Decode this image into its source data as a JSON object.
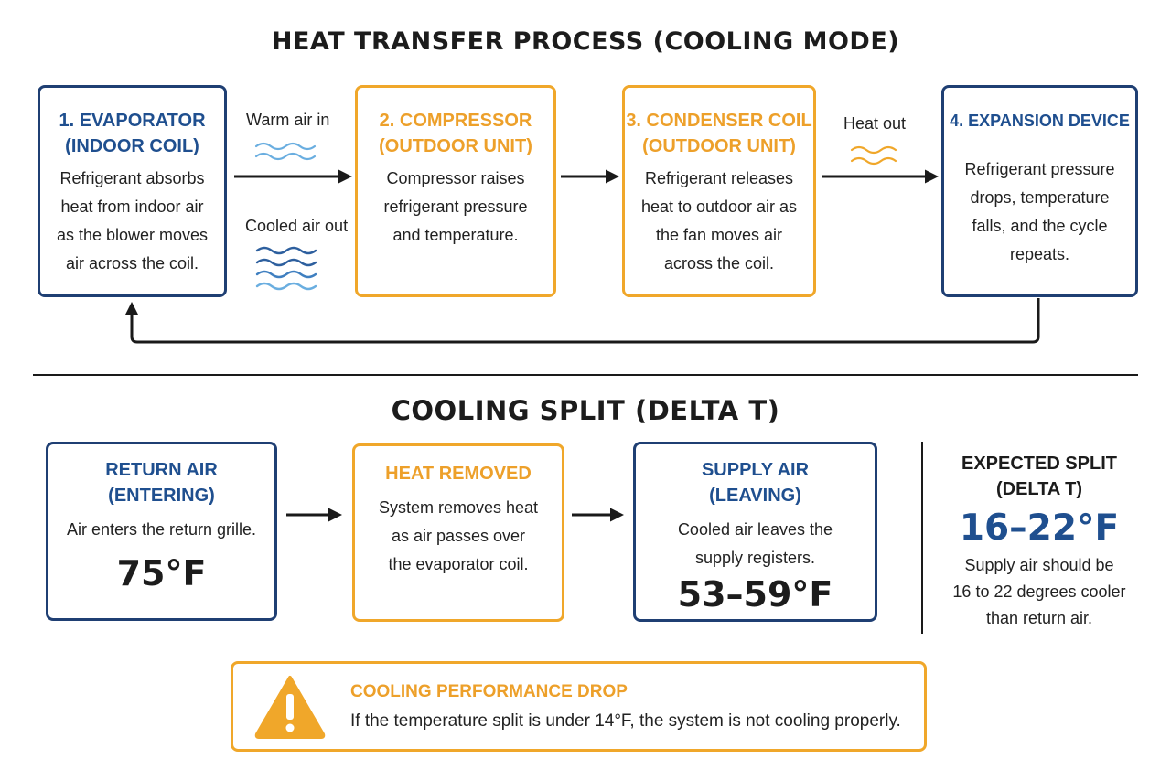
{
  "process": {
    "title": "HEAT TRANSFER PROCESS (COOLING MODE)",
    "steps": [
      {
        "title": "1. EVAPORATOR\n(INDOOR COIL)",
        "body": "Refrigerant absorbs\nheat from indoor air\nas the blower moves\nair across the coil.",
        "color": "#1f3f73"
      },
      {
        "title": "2. COMPRESSOR\n(OUTDOOR UNIT)",
        "body": "Compressor raises\nrefrigerant pressure\nand temperature.",
        "color": "#f0a72a"
      },
      {
        "title": "3. CONDENSER COIL\n(OUTDOOR UNIT)",
        "body": "Refrigerant releases\nheat to outdoor air as\nthe fan moves air\nacross the coil.",
        "color": "#f0a72a"
      },
      {
        "title": "4. EXPANSION DEVICE",
        "body": "Refrigerant pressure\ndrops, temperature\nfalls, and the cycle\nrepeats.",
        "color": "#1f3f73"
      }
    ],
    "labels": {
      "warm_air_in": "Warm air in",
      "cooled_air_out": "Cooled air out",
      "heat_out": "Heat out"
    }
  },
  "split": {
    "title": "COOLING SPLIT (DELTA T)",
    "return_air": {
      "title": "RETURN AIR\n(ENTERING)",
      "body": "Air enters the return grille.",
      "temp": "75°F"
    },
    "heat_removed": {
      "title": "HEAT REMOVED",
      "body": "System removes heat\nas air passes over\nthe evaporator coil."
    },
    "supply_air": {
      "title": "SUPPLY AIR\n(LEAVING)",
      "body": "Cooled air leaves the\nsupply registers.",
      "temp": "53–59°F"
    },
    "expected": {
      "title": "EXPECTED SPLIT\n(DELTA T)",
      "value": "16–22°F",
      "body": "Supply air should be\n16 to 22 degrees cooler\nthan return air."
    }
  },
  "warning": {
    "title": "COOLING PERFORMANCE DROP",
    "body": "If the temperature split is under 14°F, the system is not cooling properly.",
    "icon": "warning-triangle-icon"
  },
  "colors": {
    "navy": "#1f3f73",
    "orange": "#f0a72a",
    "wave_light": "#6aaee0",
    "wave_dark": "#2d5f9e"
  }
}
